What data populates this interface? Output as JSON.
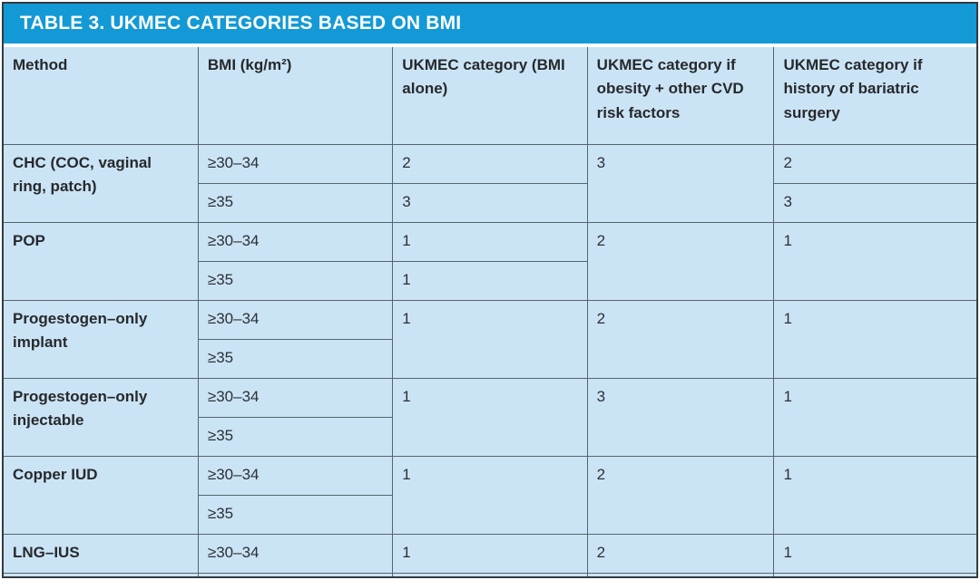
{
  "title": "TABLE 3. UKMEC CATEGORIES BASED ON BMI",
  "colors": {
    "header_bar": "#1399d6",
    "title_text": "#ffffff",
    "cell_background": "#cbe4f5",
    "grid_border": "#55656e",
    "outer_border": "#333b41",
    "body_text": "#2b3036"
  },
  "table": {
    "columns": [
      "Method",
      "BMI (kg/m²)",
      "UKMEC category (BMI alone)",
      "UKMEC category if obesity + other CVD risk factors",
      "UKMEC category if history of bariatric surgery"
    ],
    "rows": [
      {
        "method": "CHC (COC, vaginal ring, patch)",
        "bmi1": "≥30–34",
        "bmi2": "≥35",
        "alone1": "2",
        "alone2": "3",
        "cvd": "3",
        "bariatric1": "2",
        "bariatric2": "3"
      },
      {
        "method": "POP",
        "bmi1": "≥30–34",
        "bmi2": "≥35",
        "alone1": "1",
        "alone2": "1",
        "cvd": "2",
        "bariatric": "1"
      },
      {
        "method": "Progestogen–only implant",
        "bmi1": "≥30–34",
        "bmi2": "≥35",
        "alone": "1",
        "cvd": "2",
        "bariatric": "1"
      },
      {
        "method": "Progestogen–only injectable",
        "bmi1": "≥30–34",
        "bmi2": "≥35",
        "alone": "1",
        "cvd": "3",
        "bariatric": "1"
      },
      {
        "method": "Copper IUD",
        "bmi1": "≥30–34",
        "bmi2": "≥35",
        "alone": "1",
        "cvd": "2",
        "bariatric": "1"
      },
      {
        "method": "LNG–IUS",
        "bmi1": "≥30–34",
        "alone": "1",
        "cvd": "2",
        "bariatric": "1"
      }
    ]
  }
}
